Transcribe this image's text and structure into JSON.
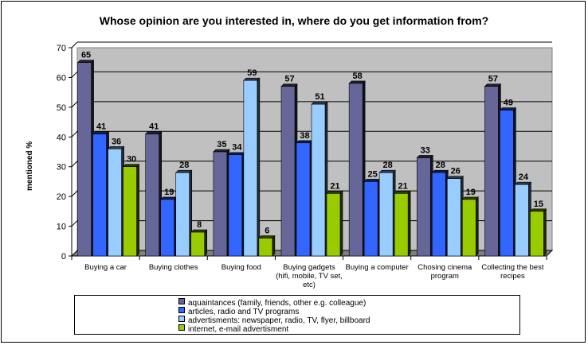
{
  "chart_data": {
    "type": "bar",
    "title": "Whose opinion are you interested in, where do you get information from?",
    "ylabel": "mentioned %",
    "xlabel": "",
    "ylim": [
      0,
      70
    ],
    "yticks": [
      "0",
      "10",
      "20",
      "30",
      "40",
      "50",
      "60",
      "70"
    ],
    "grid": true,
    "legend_position": "bottom",
    "categories": [
      [
        "Buying a car"
      ],
      [
        "Buying clothes"
      ],
      [
        "Buying food"
      ],
      [
        "Buying gadgets",
        "(hifi, mobile, TV set,",
        "etc)"
      ],
      [
        "Buying a computer"
      ],
      [
        "Chosing cinema",
        "program"
      ],
      [
        "Collecting the best",
        "recipes"
      ]
    ],
    "series": [
      {
        "name": "aquaintances (family, friends, other e.g. colleague)",
        "color": "#666699",
        "values": [
          65,
          41,
          35,
          57,
          58,
          33,
          57
        ]
      },
      {
        "name": "articles, radio and TV programs",
        "color": "#3366ff",
        "values": [
          41,
          19,
          34,
          38,
          25,
          28,
          49
        ]
      },
      {
        "name": "advertisments: newspaper, radio, TV, flyer, billboard",
        "color": "#99ccff",
        "values": [
          36,
          28,
          59,
          51,
          28,
          26,
          24
        ]
      },
      {
        "name": "internet, e-mail advertisment",
        "color": "#99cc00",
        "values": [
          30,
          8,
          6,
          21,
          21,
          19,
          15
        ]
      }
    ],
    "plot_background": "#c0c0c0"
  }
}
